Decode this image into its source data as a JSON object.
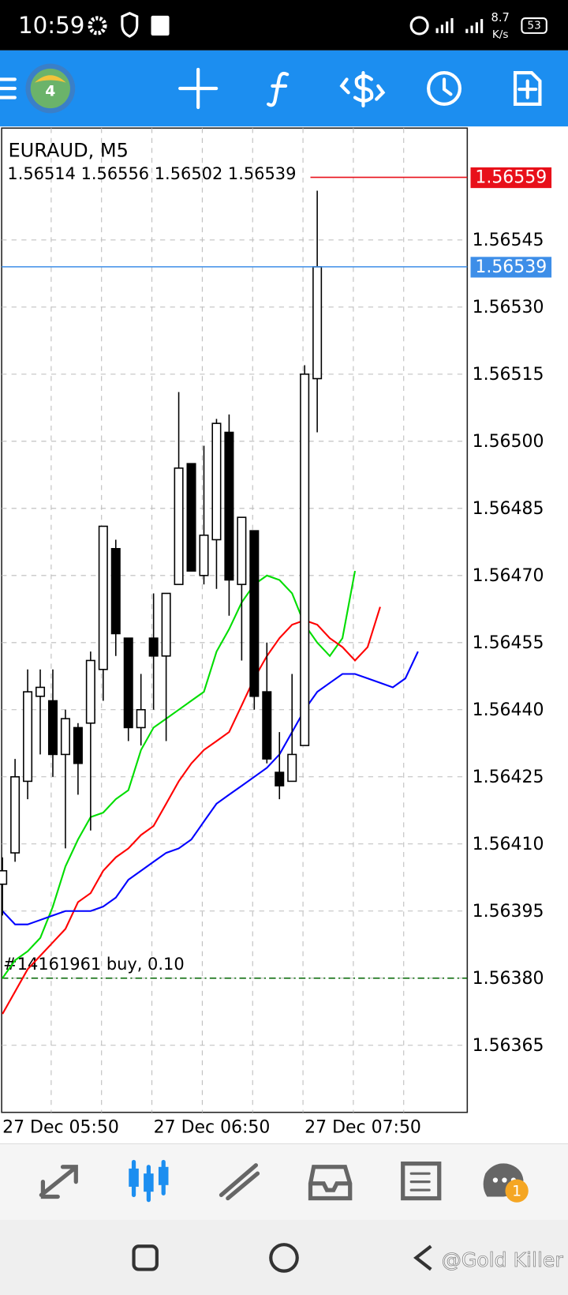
{
  "status_bar": {
    "time": "10:59",
    "speed": "8.7",
    "speed_unit": "K/s",
    "battery": "53"
  },
  "chart_data": {
    "type": "candlestick",
    "title": "EURAUD, M5",
    "ohlc": "1.56514 1.56556 1.56502 1.56539",
    "categories": [
      "27 Dec 05:50",
      null,
      null,
      null,
      null,
      null,
      null,
      null,
      null,
      null,
      null,
      null,
      "27 Dec 06:50",
      null,
      null,
      null,
      null,
      null,
      null,
      null,
      null,
      null,
      null,
      null,
      "27 Dec 07:50",
      null,
      null,
      null,
      null,
      null,
      null,
      null,
      null,
      null
    ],
    "open": [
      1.56401,
      1.56408,
      1.56424,
      1.56443,
      1.56442,
      1.5643,
      1.56436,
      1.56437,
      1.56449,
      1.56476,
      1.56456,
      1.56436,
      1.56456,
      1.56452,
      1.56468,
      1.56495,
      1.5647,
      1.56478,
      1.56502,
      1.56468,
      1.5648,
      1.56444,
      1.56426,
      1.56424,
      1.56432,
      1.56514,
      null,
      null,
      null,
      null,
      null,
      null,
      null,
      null
    ],
    "high": [
      1.56407,
      1.56429,
      1.56449,
      1.56449,
      1.56449,
      1.5644,
      1.56437,
      1.56453,
      1.56481,
      1.56478,
      1.56456,
      1.56448,
      1.56466,
      1.56466,
      1.56511,
      1.56495,
      1.56499,
      1.56505,
      1.56506,
      1.56483,
      1.5648,
      1.56455,
      1.56435,
      1.56448,
      1.56517,
      1.56556,
      null,
      null,
      null,
      null,
      null,
      null,
      null,
      null
    ],
    "low": [
      1.56394,
      1.56406,
      1.5642,
      1.5643,
      1.56425,
      1.56409,
      1.56421,
      1.56413,
      1.56442,
      1.56452,
      1.56433,
      1.56432,
      1.5644,
      1.56433,
      1.56468,
      1.56471,
      1.56468,
      1.56467,
      1.56461,
      1.56451,
      1.5644,
      1.56428,
      1.5642,
      1.56424,
      1.56432,
      1.56502,
      null,
      null,
      null,
      null,
      null,
      null,
      null,
      null
    ],
    "close": [
      1.56404,
      1.56425,
      1.56444,
      1.56445,
      1.5643,
      1.56438,
      1.56428,
      1.56451,
      1.56481,
      1.56457,
      1.56436,
      1.5644,
      1.56452,
      1.56466,
      1.56494,
      1.56471,
      1.56479,
      1.56504,
      1.56469,
      1.56483,
      1.56443,
      1.56429,
      1.56423,
      1.5643,
      1.56515,
      1.56539,
      null,
      null,
      null,
      null,
      null,
      null,
      null,
      null
    ],
    "up_color": "#ffffff",
    "down_color": "#000000",
    "lines": [
      {
        "color": "#00dd00",
        "values": [
          1.5638,
          1.56384,
          1.56386,
          1.56389,
          1.56396,
          1.56405,
          1.56411,
          1.56416,
          1.56417,
          1.5642,
          1.56422,
          1.56431,
          1.56436,
          1.56438,
          1.5644,
          1.56442,
          1.56444,
          1.56453,
          1.56458,
          1.56464,
          1.56468,
          1.5647,
          1.56469,
          1.56466,
          1.56459,
          1.56455,
          1.56452,
          1.56456,
          1.56471,
          null,
          null,
          null,
          null,
          null
        ]
      },
      {
        "color": "#ff0000",
        "values": [
          1.56372,
          1.56377,
          1.56382,
          1.56385,
          1.56388,
          1.56391,
          1.56397,
          1.56399,
          1.56404,
          1.56407,
          1.56409,
          1.56412,
          1.56414,
          1.56419,
          1.56424,
          1.56428,
          1.56431,
          1.56433,
          1.56435,
          1.56441,
          1.56447,
          1.56452,
          1.56456,
          1.56459,
          1.5646,
          1.56459,
          1.56456,
          1.56454,
          1.56451,
          1.56454,
          1.56463,
          null,
          null,
          null
        ]
      },
      {
        "color": "#0000ff",
        "values": [
          1.56395,
          1.56392,
          1.56392,
          1.56393,
          1.56394,
          1.56395,
          1.56395,
          1.56395,
          1.56396,
          1.56398,
          1.56402,
          1.56404,
          1.56406,
          1.56408,
          1.56409,
          1.56411,
          1.56415,
          1.56419,
          1.56421,
          1.56423,
          1.56425,
          1.56427,
          1.5643,
          1.56435,
          1.5644,
          1.56444,
          1.56446,
          1.56448,
          1.56448,
          1.56447,
          1.56446,
          1.56445,
          1.56447,
          1.56453
        ]
      }
    ],
    "bid": 1.56539,
    "bid_color": "#3d8ee8",
    "ask": 1.56559,
    "ask_color": "#e8101a",
    "order": {
      "label": "#14161961 buy, 0.10",
      "price": 1.5638,
      "color": "#006400"
    },
    "ylim": [
      1.5635,
      1.5657
    ],
    "yticks": [
      1.56365,
      {
        "value": 1.5638,
        "label": "1.56380"
      },
      1.56395,
      {
        "value": 1.5641,
        "label": "1.56410"
      },
      1.56425,
      {
        "value": 1.5644,
        "label": "1.56440"
      },
      1.56455,
      {
        "value": 1.5647,
        "label": "1.56470"
      },
      1.56485,
      {
        "value": 1.565,
        "label": "1.56500"
      },
      1.56515,
      {
        "value": 1.5653,
        "label": "1.56530"
      },
      1.56545
    ],
    "grid": true
  },
  "badge": "1",
  "watermark": "@Gold Killer"
}
